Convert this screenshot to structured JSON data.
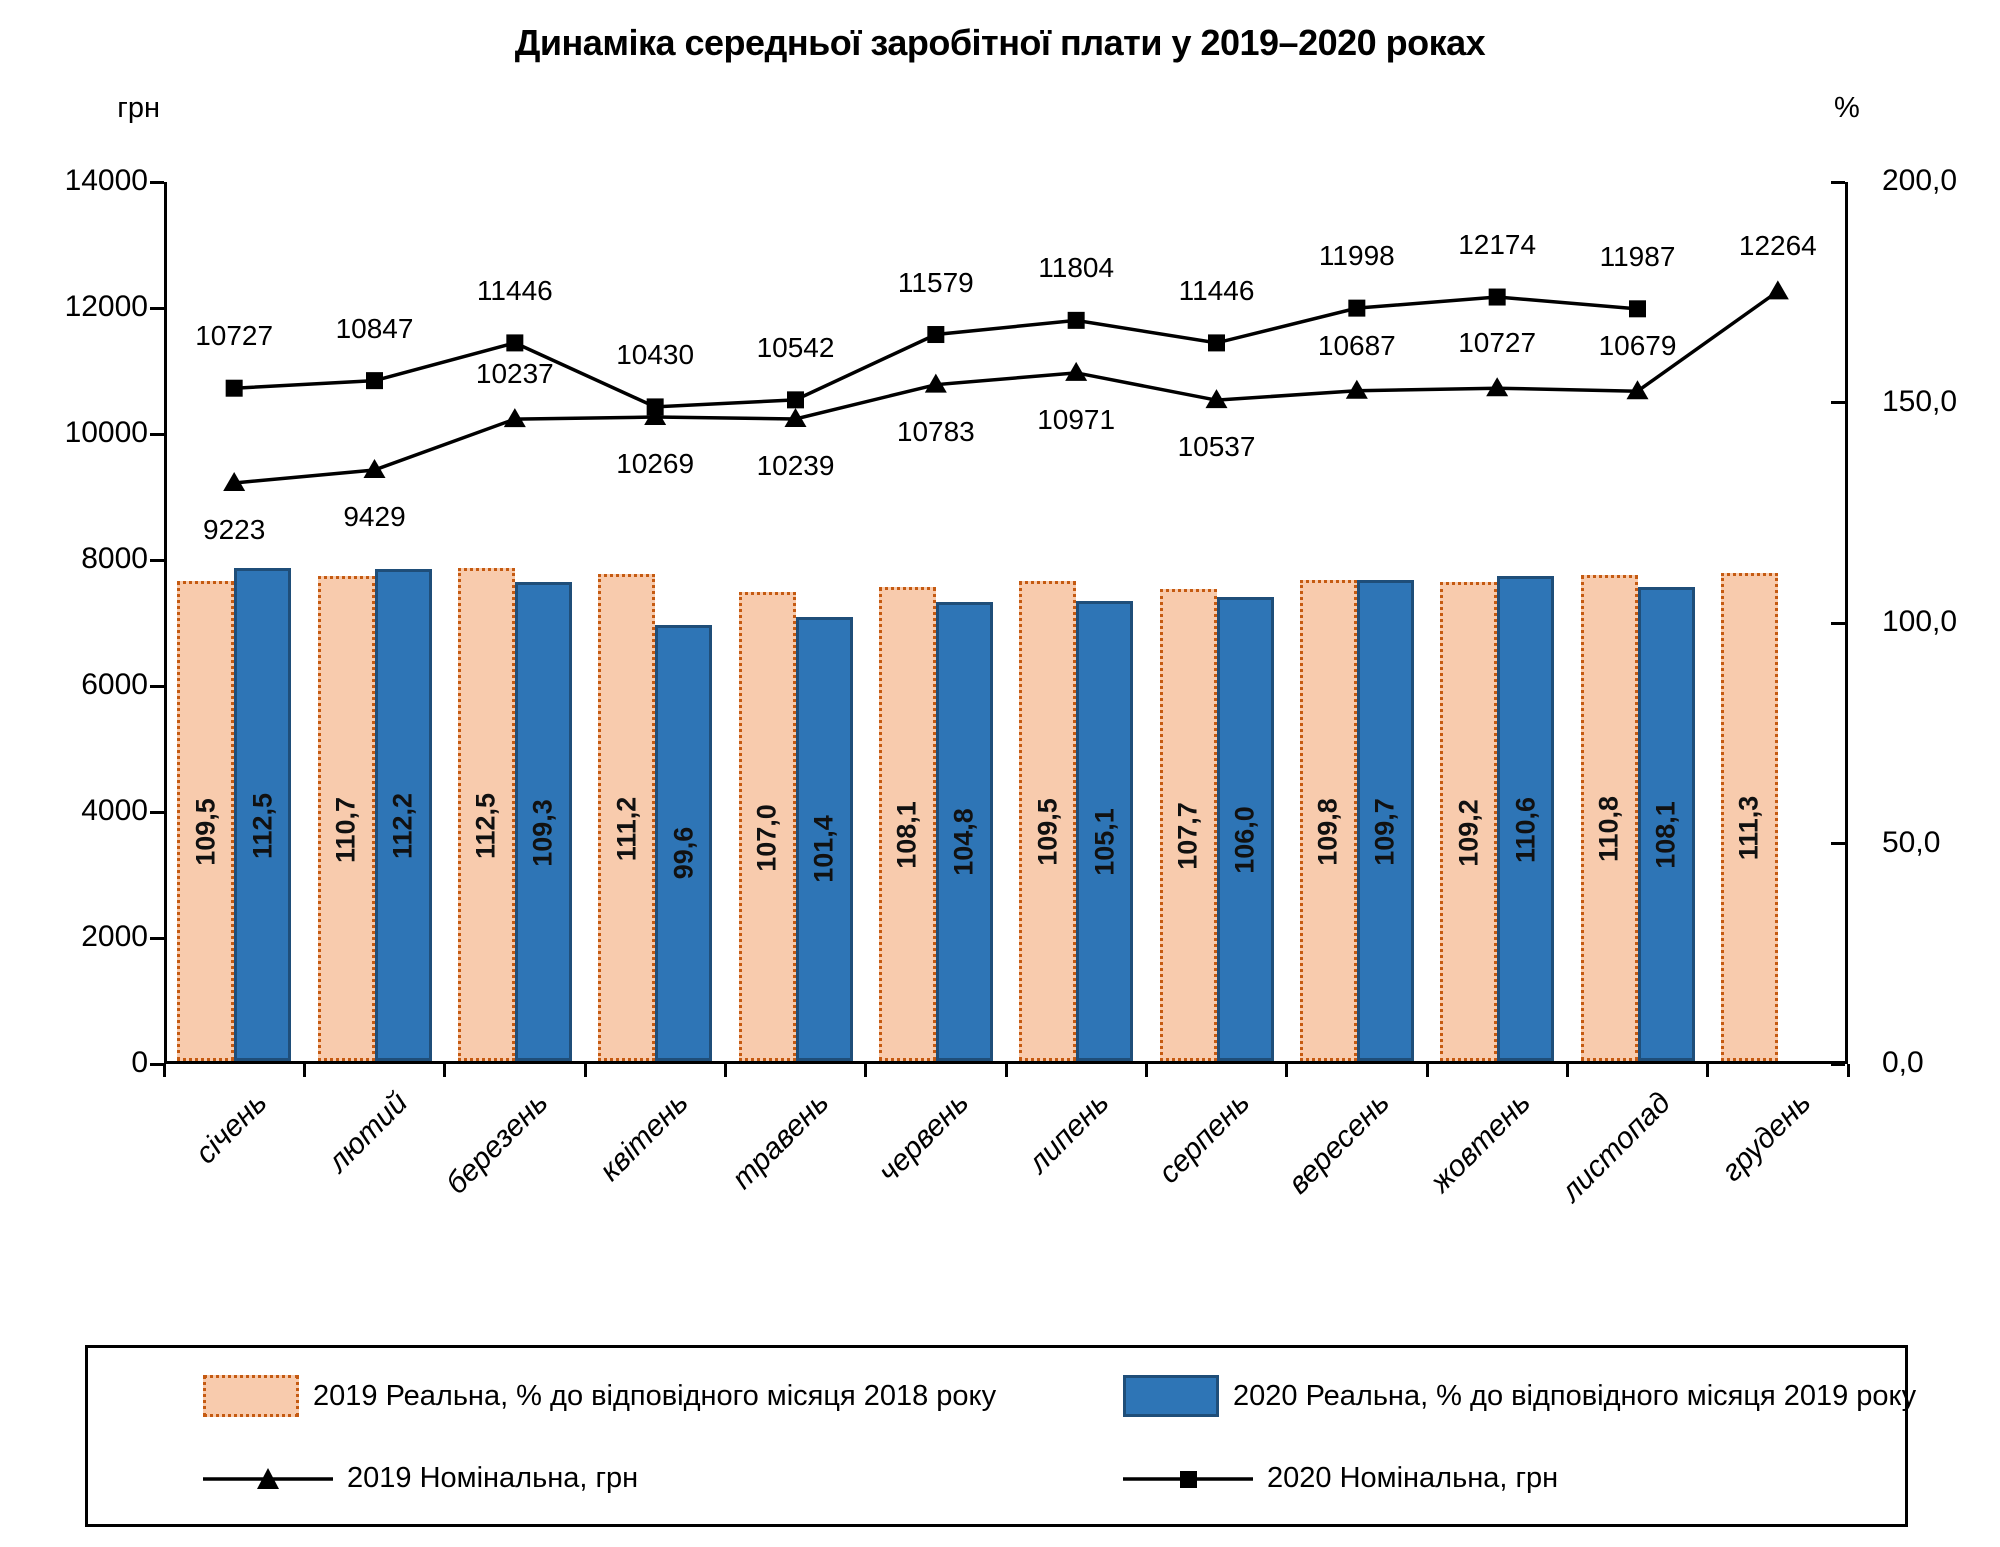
{
  "title": "Динаміка середньої заробітної плати у 2019–2020 роках",
  "chart_data": {
    "type": "combo-bar-line",
    "grid": false,
    "legend_position": "bottom",
    "categories": [
      "січень",
      "лютий",
      "березень",
      "квітень",
      "травень",
      "червень",
      "липень",
      "серпень",
      "вересень",
      "жовтень",
      "листопад",
      "грудень"
    ],
    "left_axis": {
      "unit": "грн",
      "min": 0,
      "max": 14000,
      "step": 2000,
      "tick_labels": [
        "0",
        "2000",
        "4000",
        "6000",
        "8000",
        "10000",
        "12000",
        "14000"
      ]
    },
    "right_axis": {
      "unit": "%",
      "min": 0,
      "max": 200,
      "step": 50,
      "tick_labels": [
        "0,0",
        "50,0",
        "100,0",
        "150,0",
        "200,0"
      ]
    },
    "series": [
      {
        "name": "2019 Реальна, % до відповідного місяця 2018 року",
        "type": "bar",
        "axis": "right",
        "color": "#F8CBAD",
        "border_color": "#C55A11",
        "values": [
          109.5,
          110.7,
          112.5,
          111.2,
          107.0,
          108.1,
          109.5,
          107.7,
          109.8,
          109.2,
          110.8,
          111.3
        ]
      },
      {
        "name": "2020 Реальна, % до відповідного місяця 2019 року",
        "type": "bar",
        "axis": "right",
        "color": "#2E75B6",
        "border_color": "#1F4E79",
        "values": [
          112.5,
          112.2,
          109.3,
          99.6,
          101.4,
          104.8,
          105.1,
          106.0,
          109.7,
          110.6,
          108.1,
          null
        ]
      },
      {
        "name": "2019 Номінальна, грн",
        "type": "line",
        "marker": "triangle",
        "axis": "left",
        "color": "#000000",
        "values": [
          9223,
          9429,
          10237,
          10269,
          10239,
          10783,
          10971,
          10537,
          10687,
          10727,
          10679,
          12264
        ],
        "label_side": [
          "below",
          "below",
          "above",
          "below",
          "below",
          "below",
          "below",
          "below",
          "above",
          "above",
          "above",
          "above"
        ]
      },
      {
        "name": "2020 Номінальна, грн",
        "type": "line",
        "marker": "square",
        "axis": "left",
        "color": "#000000",
        "values": [
          10727,
          10847,
          11446,
          10430,
          10542,
          11579,
          11804,
          11446,
          11998,
          12174,
          11987,
          null
        ],
        "label_side": [
          "above",
          "above",
          "above",
          "above",
          "above",
          "above",
          "above",
          "above",
          "above",
          "above",
          "above",
          "above"
        ]
      }
    ]
  }
}
